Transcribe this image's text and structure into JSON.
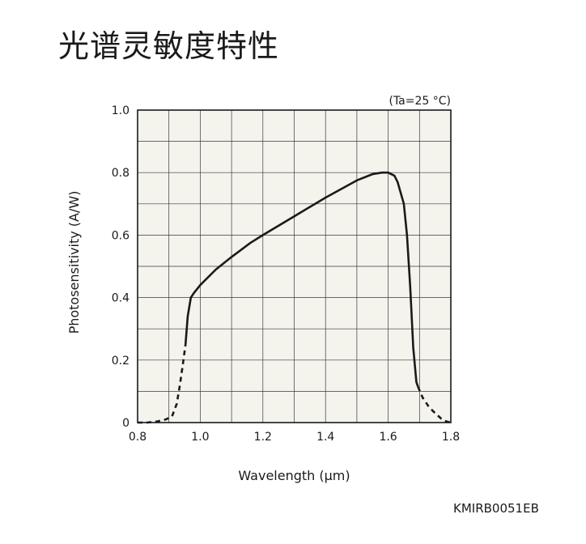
{
  "title": "光谱灵敏度特性",
  "figure_code": "KMIRB0051EB",
  "chart_data": {
    "type": "line",
    "title": "",
    "xlabel": "Wavelength (μm)",
    "ylabel": "Photosensitivity (A/W)",
    "annotation": "(Ta=25 °C)",
    "xlim": [
      0.8,
      1.8
    ],
    "ylim": [
      0,
      1.0
    ],
    "xticks": [
      0.8,
      0.9,
      1.0,
      1.1,
      1.2,
      1.3,
      1.4,
      1.5,
      1.6,
      1.7,
      1.8
    ],
    "xtick_labels": [
      "0.8",
      "",
      "1.0",
      "",
      "1.2",
      "",
      "1.4",
      "",
      "1.6",
      "",
      "1.8"
    ],
    "yticks": [
      0,
      0.1,
      0.2,
      0.3,
      0.4,
      0.5,
      0.6,
      0.7,
      0.8,
      0.9,
      1.0
    ],
    "ytick_labels": [
      "0",
      "",
      "0.2",
      "",
      "0.4",
      "",
      "0.6",
      "",
      "0.8",
      "",
      "1.0"
    ],
    "grid": true,
    "plot_background": "#f4f3ec",
    "line_color": "#1a1a1a",
    "series": [
      {
        "style": "dashed",
        "x": [
          0.8,
          0.83,
          0.86,
          0.89,
          0.91,
          0.925,
          0.935,
          0.945,
          0.953
        ],
        "y": [
          0.0,
          0.0,
          0.003,
          0.01,
          0.02,
          0.06,
          0.12,
          0.19,
          0.25
        ]
      },
      {
        "style": "solid",
        "x": [
          0.953,
          0.96,
          0.97,
          0.98,
          1.0,
          1.05,
          1.1,
          1.16,
          1.2,
          1.3,
          1.4,
          1.5,
          1.55,
          1.58,
          1.6,
          1.62,
          1.63,
          1.65,
          1.66,
          1.67,
          1.68,
          1.69,
          1.695
        ],
        "y": [
          0.25,
          0.34,
          0.4,
          0.415,
          0.44,
          0.49,
          0.53,
          0.575,
          0.6,
          0.66,
          0.72,
          0.775,
          0.795,
          0.8,
          0.8,
          0.79,
          0.77,
          0.7,
          0.6,
          0.44,
          0.24,
          0.13,
          0.115
        ]
      },
      {
        "style": "dashed",
        "x": [
          1.695,
          1.71,
          1.73,
          1.75,
          1.77,
          1.785,
          1.8
        ],
        "y": [
          0.115,
          0.08,
          0.05,
          0.03,
          0.012,
          0.004,
          0.0
        ]
      }
    ]
  }
}
